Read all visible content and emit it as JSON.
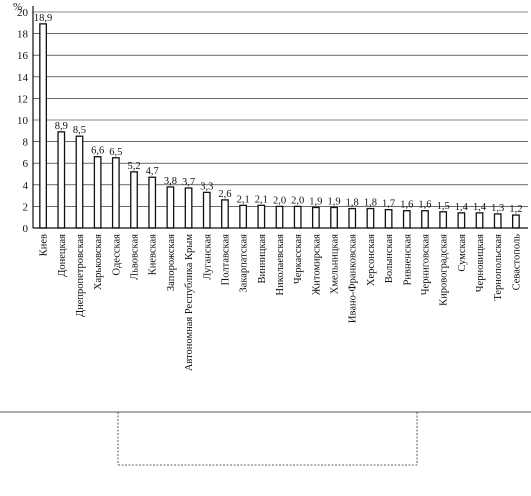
{
  "chart_data": {
    "type": "bar",
    "title": "",
    "xlabel": "",
    "ylabel": "%",
    "ylim": [
      0,
      20
    ],
    "yticks": [
      0,
      2,
      4,
      6,
      8,
      10,
      12,
      14,
      16,
      18,
      20
    ],
    "grid": true,
    "categories": [
      "Киев",
      "Донецкая",
      "Днепропетровская",
      "Харьковская",
      "Одесская",
      "Львовская",
      "Киевская",
      "Запорожская",
      "Автономная Республика Крым",
      "Луганская",
      "Полтавская",
      "Закарпатская",
      "Винницкая",
      "Николаевская",
      "Черкасская",
      "Житомирская",
      "Хмельницкая",
      "Ивано-Франковская",
      "Херсонская",
      "Волынская",
      "Ривненская",
      "Черниговская",
      "Кировоградская",
      "Сумская",
      "Черновицкая",
      "Тернопольская",
      "Севастополь"
    ],
    "values": [
      18.9,
      8.9,
      8.5,
      6.6,
      6.5,
      5.2,
      4.7,
      3.8,
      3.7,
      3.3,
      2.6,
      2.1,
      2.1,
      2.0,
      2.0,
      1.9,
      1.9,
      1.8,
      1.8,
      1.7,
      1.6,
      1.6,
      1.5,
      1.4,
      1.4,
      1.3,
      1.2
    ],
    "value_labels": [
      "18,9",
      "8,9",
      "8,5",
      "6,6",
      "6,5",
      "5,2",
      "4,7",
      "3,8",
      "3,7",
      "3,3",
      "2,6",
      "2,1",
      "2,1",
      "2,0",
      "2,0",
      "1,9",
      "1,9",
      "1,8",
      "1,8",
      "1,7",
      "1,6",
      "1,6",
      "1,5",
      "1,4",
      "1,4",
      "1,3",
      "1,2"
    ]
  }
}
